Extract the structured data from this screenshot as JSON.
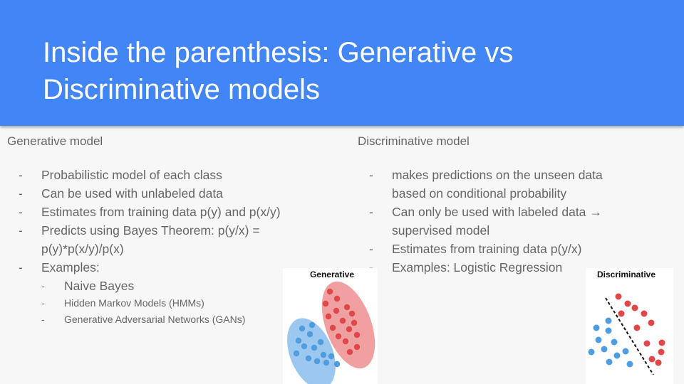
{
  "slide": {
    "title": "Inside the parenthesis: Generative vs Discriminative models"
  },
  "left": {
    "heading": "Generative model",
    "bullets": [
      "Probabilistic model of each class",
      "Can be used with unlabeled data",
      "Estimates from training data p(y) and p(x/y)",
      "Predicts using Bayes Theorem: p(y/x) = p(y)*p(x/y)/p(x)",
      "Examples:"
    ],
    "examples": [
      "Naive Bayes",
      "Hidden Markov Models (HMMs)",
      "Generative Adversarial Networks (GANs)"
    ]
  },
  "right": {
    "heading": "Discriminative model",
    "bullets": [
      "makes predictions on the unseen data based on conditional probability",
      "Can only be used with labeled data → supervised model",
      "Estimates from training data p(y/x)",
      "Examples: Logistic Regression"
    ]
  },
  "figures": {
    "generative_label": "Generative",
    "discriminative_label": "Discriminative"
  },
  "colors": {
    "header": "#4285f4",
    "blue_points": "#4d9de0",
    "red_points": "#e04848",
    "blue_ellipse": "#9cc8f0",
    "red_ellipse": "#f0a0a0"
  }
}
